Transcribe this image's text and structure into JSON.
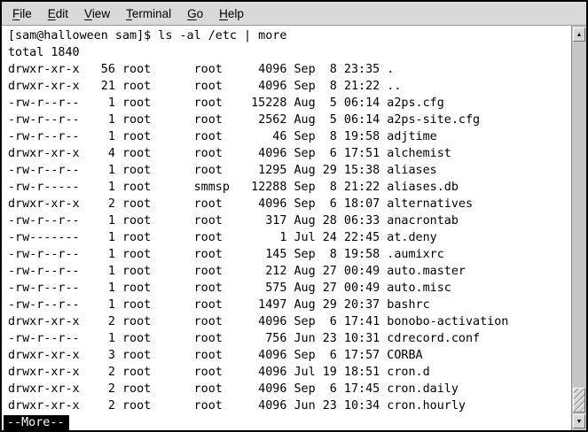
{
  "menu_bar": {
    "items": [
      {
        "label": "File",
        "accel_index": 0
      },
      {
        "label": "Edit",
        "accel_index": 0
      },
      {
        "label": "View",
        "accel_index": 0
      },
      {
        "label": "Terminal",
        "accel_index": 0
      },
      {
        "label": "Go",
        "accel_index": 0
      },
      {
        "label": "Help",
        "accel_index": 0
      }
    ]
  },
  "terminal": {
    "prompt_line": "[sam@halloween sam]$ ls -al /etc | more",
    "output_lines": [
      "total 1840",
      "drwxr-xr-x   56 root      root     4096 Sep  8 23:35 .",
      "drwxr-xr-x   21 root      root     4096 Sep  8 21:22 ..",
      "-rw-r--r--    1 root      root    15228 Aug  5 06:14 a2ps.cfg",
      "-rw-r--r--    1 root      root     2562 Aug  5 06:14 a2ps-site.cfg",
      "-rw-r--r--    1 root      root       46 Sep  8 19:58 adjtime",
      "drwxr-xr-x    4 root      root     4096 Sep  6 17:51 alchemist",
      "-rw-r--r--    1 root      root     1295 Aug 29 15:38 aliases",
      "-rw-r-----    1 root      smmsp   12288 Sep  8 21:22 aliases.db",
      "drwxr-xr-x    2 root      root     4096 Sep  6 18:07 alternatives",
      "-rw-r--r--    1 root      root      317 Aug 28 06:33 anacrontab",
      "-rw-------    1 root      root        1 Jul 24 22:45 at.deny",
      "-rw-r--r--    1 root      root      145 Sep  8 19:58 .aumixrc",
      "-rw-r--r--    1 root      root      212 Aug 27 00:49 auto.master",
      "-rw-r--r--    1 root      root      575 Aug 27 00:49 auto.misc",
      "-rw-r--r--    1 root      root     1497 Aug 29 20:37 bashrc",
      "drwxr-xr-x    2 root      root     4096 Sep  6 17:41 bonobo-activation",
      "-rw-r--r--    1 root      root      756 Jun 23 10:31 cdrecord.conf",
      "drwxr-xr-x    3 root      root     4096 Sep  6 17:57 CORBA",
      "drwxr-xr-x    2 root      root     4096 Jul 19 18:51 cron.d",
      "drwxr-xr-x    2 root      root     4096 Sep  6 17:45 cron.daily",
      "drwxr-xr-x    2 root      root     4096 Jun 23 10:34 cron.hourly"
    ],
    "more_prompt": "--More--",
    "colors": {
      "background": "#ffffff",
      "text": "#000000",
      "inverse_bg": "#000000",
      "inverse_text": "#ffffff",
      "menu_bar_bg": "#d9d9d9"
    }
  },
  "scrollbar": {
    "icons": {
      "up_arrow": "▲",
      "down_arrow": "▼"
    }
  }
}
